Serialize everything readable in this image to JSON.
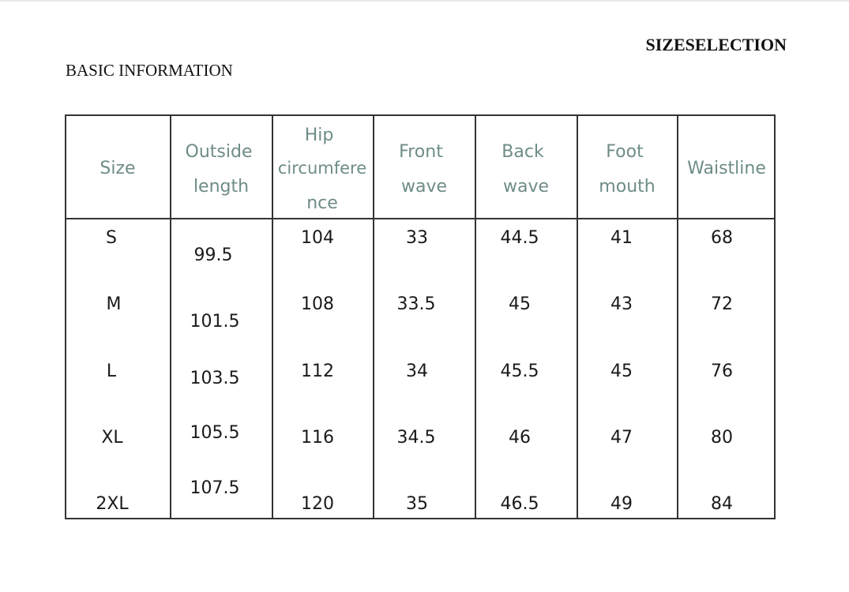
{
  "headings": {
    "size_selection": "SIZESELECTION",
    "basic_information": "BASIC INFORMATION"
  },
  "table": {
    "headers": {
      "size": "Size",
      "outside_length": [
        "Outside",
        "length"
      ],
      "hip": [
        "Hip",
        "circumfere",
        "nce"
      ],
      "front_wave": [
        "Front",
        "wave"
      ],
      "back_wave": [
        "Back",
        "wave"
      ],
      "foot_mouth": [
        "Foot",
        "mouth"
      ],
      "waistline": "Waistline"
    },
    "rows": [
      {
        "size": "S",
        "outside_length": "99.5",
        "hip": "104",
        "front_wave": "33",
        "back_wave": "44.5",
        "foot_mouth": "41",
        "waistline": "68"
      },
      {
        "size": "M",
        "outside_length": "101.5",
        "hip": "108",
        "front_wave": "33.5",
        "back_wave": "45",
        "foot_mouth": "43",
        "waistline": "72"
      },
      {
        "size": "L",
        "outside_length": "103.5",
        "hip": "112",
        "front_wave": "34",
        "back_wave": "45.5",
        "foot_mouth": "45",
        "waistline": "76"
      },
      {
        "size": "XL",
        "outside_length": "105.5",
        "hip": "116",
        "front_wave": "34.5",
        "back_wave": "46",
        "foot_mouth": "47",
        "waistline": "80"
      },
      {
        "size": "2XL",
        "outside_length": "107.5",
        "hip": "120",
        "front_wave": "35",
        "back_wave": "46.5",
        "foot_mouth": "49",
        "waistline": "84"
      }
    ]
  },
  "colors": {
    "header_text": "#6e8c88",
    "body_text": "#1a1a1a",
    "grid_lines": "#333333"
  }
}
